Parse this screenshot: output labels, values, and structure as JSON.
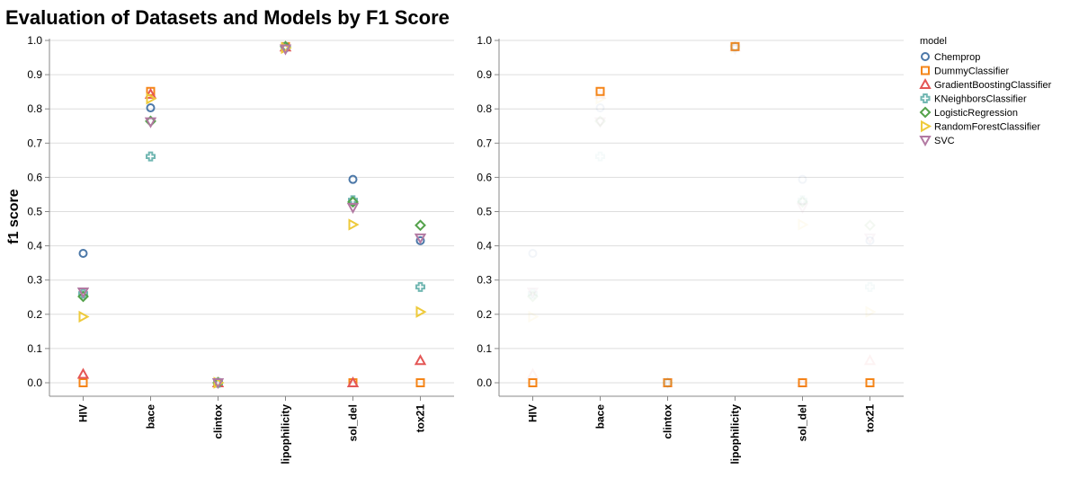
{
  "chart_data": {
    "type": "scatter",
    "title": "Evaluation of Datasets and Models by F1 Score",
    "ylabel": "f1 score",
    "xlabel": "",
    "ylim": [
      0,
      1
    ],
    "yticks": [
      "0.0",
      "0.1",
      "0.2",
      "0.3",
      "0.4",
      "0.5",
      "0.6",
      "0.7",
      "0.8",
      "0.9",
      "1.0"
    ],
    "grid": true,
    "legend_title": "model",
    "legend_position": "right",
    "categories": [
      "HIV",
      "bace",
      "clintox",
      "lipophilicity",
      "sol_del",
      "tox21"
    ],
    "series": [
      {
        "name": "Chemprop",
        "shape": "circle",
        "color": "#4c78a8",
        "values": [
          0.378,
          0.803,
          0.0,
          0.982,
          0.594,
          0.415
        ]
      },
      {
        "name": "DummyClassifier",
        "shape": "square",
        "color": "#f58518",
        "values": [
          0.0,
          0.851,
          0.0,
          0.982,
          0.0,
          0.0
        ]
      },
      {
        "name": "GradientBoostingClassifier",
        "shape": "triangle-up",
        "color": "#e45756",
        "values": [
          0.025,
          0.843,
          0.0,
          0.981,
          0.0,
          0.065
        ]
      },
      {
        "name": "KNeighborsClassifier",
        "shape": "cross",
        "color": "#72b7b2",
        "values": [
          0.26,
          0.661,
          0.0,
          0.98,
          0.533,
          0.28
        ]
      },
      {
        "name": "LogisticRegression",
        "shape": "diamond",
        "color": "#54a24b",
        "values": [
          0.252,
          0.764,
          0.0,
          0.982,
          0.528,
          0.46
        ]
      },
      {
        "name": "RandomForestClassifier",
        "shape": "triangle-right",
        "color": "#eeca3b",
        "values": [
          0.193,
          0.83,
          0.0,
          0.978,
          0.462,
          0.207
        ]
      },
      {
        "name": "SVC",
        "shape": "triangle-down",
        "color": "#b279a2",
        "values": [
          0.265,
          0.762,
          0.0,
          0.975,
          0.512,
          0.423
        ]
      }
    ],
    "right_panel_highlight": "DummyClassifier"
  }
}
